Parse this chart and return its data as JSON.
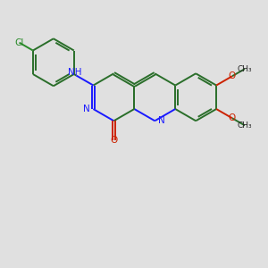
{
  "bg_color": "#e0e0e0",
  "bond_color": "#2a6e2a",
  "n_color": "#1a1aff",
  "o_color": "#cc2200",
  "cl_color": "#2a8a2a",
  "lw": 1.4,
  "figsize": [
    3.0,
    3.0
  ],
  "dpi": 100,
  "xlim": [
    0,
    10
  ],
  "ylim": [
    0,
    10
  ]
}
